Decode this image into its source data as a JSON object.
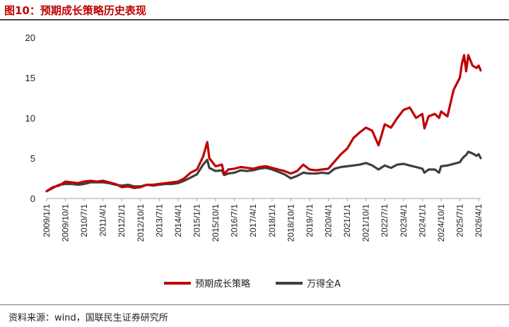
{
  "header": {
    "title": "图10：预期成长策略历史表现"
  },
  "footer": {
    "source": "资料来源：wind，国联民生证券研究所"
  },
  "colors": {
    "series1": "#c00000",
    "series2": "#3f3f3f",
    "title": "#c00000"
  },
  "chart_data": {
    "type": "line",
    "ylim": [
      0,
      20
    ],
    "yticks": [
      0,
      5,
      10,
      15,
      20
    ],
    "xticks": [
      "2009/1/1",
      "2009/10/1",
      "2010/7/1",
      "2011/4/1",
      "2012/1/1",
      "2012/10/1",
      "2013/7/1",
      "2014/4/1",
      "2015/1/1",
      "2015/10/1",
      "2016/7/1",
      "2017/4/1",
      "2018/1/1",
      "2018/10/1",
      "2019/7/1",
      "2020/4/1",
      "2021/1/1",
      "2021/10/1",
      "2022/7/1",
      "2023/4/1",
      "2024/1/1",
      "2024/10/1",
      "2025/7/1",
      "2026/4/1"
    ],
    "legend_position": "bottom",
    "series": [
      {
        "name": "预期成长策略",
        "color": "#c00000",
        "x": [
          "2009/1/1",
          "2009/4/1",
          "2009/7/1",
          "2009/10/1",
          "2010/1/1",
          "2010/4/1",
          "2010/7/1",
          "2010/10/1",
          "2011/1/1",
          "2011/4/1",
          "2011/7/1",
          "2011/10/1",
          "2012/1/1",
          "2012/4/1",
          "2012/7/1",
          "2012/10/1",
          "2013/1/1",
          "2013/4/1",
          "2013/7/1",
          "2013/10/1",
          "2014/1/1",
          "2014/4/1",
          "2014/7/1",
          "2014/10/1",
          "2015/1/1",
          "2015/4/1",
          "2015/6/1",
          "2015/7/1",
          "2015/10/1",
          "2016/1/1",
          "2016/2/1",
          "2016/4/1",
          "2016/7/1",
          "2016/10/1",
          "2017/1/1",
          "2017/4/1",
          "2017/7/1",
          "2017/10/1",
          "2018/1/1",
          "2018/4/1",
          "2018/7/1",
          "2018/10/1",
          "2019/1/1",
          "2019/4/1",
          "2019/7/1",
          "2019/10/1",
          "2020/1/1",
          "2020/4/1",
          "2020/7/1",
          "2020/10/1",
          "2021/1/1",
          "2021/4/1",
          "2021/7/1",
          "2021/10/1",
          "2022/1/1",
          "2022/4/1",
          "2022/7/1",
          "2022/10/1",
          "2023/1/1",
          "2023/4/1",
          "2023/7/1",
          "2023/10/1",
          "2024/1/1",
          "2024/2/1",
          "2024/4/1",
          "2024/7/1",
          "2024/9/1",
          "2024/10/1",
          "2025/1/1",
          "2025/4/1",
          "2025/7/1",
          "2025/8/1",
          "2025/9/1",
          "2025/10/1",
          "2025/11/1",
          "2026/1/1",
          "2026/3/1",
          "2026/4/1",
          "2026/5/1"
        ],
        "values": [
          0.9,
          1.4,
          1.6,
          2.1,
          2.0,
          1.9,
          2.1,
          2.2,
          2.1,
          2.2,
          2.0,
          1.8,
          1.4,
          1.5,
          1.3,
          1.4,
          1.7,
          1.7,
          1.8,
          1.9,
          2.0,
          2.1,
          2.5,
          3.2,
          3.6,
          5.2,
          7.0,
          5.0,
          4.0,
          4.2,
          3.0,
          3.6,
          3.7,
          3.9,
          3.8,
          3.7,
          3.9,
          4.0,
          3.8,
          3.6,
          3.4,
          3.1,
          3.4,
          4.2,
          3.6,
          3.5,
          3.6,
          3.7,
          4.6,
          5.5,
          6.2,
          7.5,
          8.2,
          8.8,
          8.4,
          6.6,
          9.2,
          8.8,
          10.0,
          11.0,
          11.3,
          10.0,
          10.5,
          8.7,
          10.2,
          10.5,
          10.0,
          10.8,
          10.2,
          13.5,
          15.0,
          16.8,
          17.8,
          15.8,
          17.8,
          16.5,
          16.2,
          16.5,
          15.9
        ]
      },
      {
        "name": "万得全A",
        "color": "#3f3f3f",
        "x": [
          "2009/1/1",
          "2009/4/1",
          "2009/7/1",
          "2009/10/1",
          "2010/1/1",
          "2010/4/1",
          "2010/7/1",
          "2010/10/1",
          "2011/1/1",
          "2011/4/1",
          "2011/7/1",
          "2011/10/1",
          "2012/1/1",
          "2012/4/1",
          "2012/7/1",
          "2012/10/1",
          "2013/1/1",
          "2013/4/1",
          "2013/7/1",
          "2013/10/1",
          "2014/1/1",
          "2014/4/1",
          "2014/7/1",
          "2014/10/1",
          "2015/1/1",
          "2015/4/1",
          "2015/6/1",
          "2015/7/1",
          "2015/10/1",
          "2016/1/1",
          "2016/2/1",
          "2016/4/1",
          "2016/7/1",
          "2016/10/1",
          "2017/1/1",
          "2017/4/1",
          "2017/7/1",
          "2017/10/1",
          "2018/1/1",
          "2018/4/1",
          "2018/7/1",
          "2018/10/1",
          "2019/1/1",
          "2019/4/1",
          "2019/7/1",
          "2019/10/1",
          "2020/1/1",
          "2020/4/1",
          "2020/7/1",
          "2020/10/1",
          "2021/1/1",
          "2021/4/1",
          "2021/7/1",
          "2021/10/1",
          "2022/1/1",
          "2022/4/1",
          "2022/7/1",
          "2022/10/1",
          "2023/1/1",
          "2023/4/1",
          "2023/7/1",
          "2023/10/1",
          "2024/1/1",
          "2024/2/1",
          "2024/4/1",
          "2024/7/1",
          "2024/9/1",
          "2024/10/1",
          "2025/1/1",
          "2025/4/1",
          "2025/7/1",
          "2025/8/1",
          "2025/9/1",
          "2025/10/1",
          "2025/11/1",
          "2026/1/1",
          "2026/3/1",
          "2026/4/1",
          "2026/5/1"
        ],
        "values": [
          0.9,
          1.3,
          1.7,
          1.8,
          1.8,
          1.7,
          1.8,
          2.0,
          2.0,
          2.0,
          1.9,
          1.7,
          1.6,
          1.7,
          1.5,
          1.5,
          1.7,
          1.6,
          1.7,
          1.8,
          1.8,
          1.9,
          2.2,
          2.6,
          3.0,
          4.2,
          4.8,
          3.8,
          3.4,
          3.5,
          2.9,
          3.1,
          3.2,
          3.5,
          3.4,
          3.5,
          3.7,
          3.8,
          3.6,
          3.3,
          3.0,
          2.5,
          2.8,
          3.2,
          3.1,
          3.1,
          3.2,
          3.1,
          3.7,
          3.9,
          4.0,
          4.1,
          4.2,
          4.4,
          4.1,
          3.6,
          4.1,
          3.8,
          4.2,
          4.3,
          4.1,
          3.9,
          3.7,
          3.2,
          3.6,
          3.6,
          3.2,
          4.0,
          4.1,
          4.3,
          4.5,
          4.9,
          5.2,
          5.4,
          5.8,
          5.6,
          5.3,
          5.5,
          5.0
        ]
      }
    ]
  }
}
